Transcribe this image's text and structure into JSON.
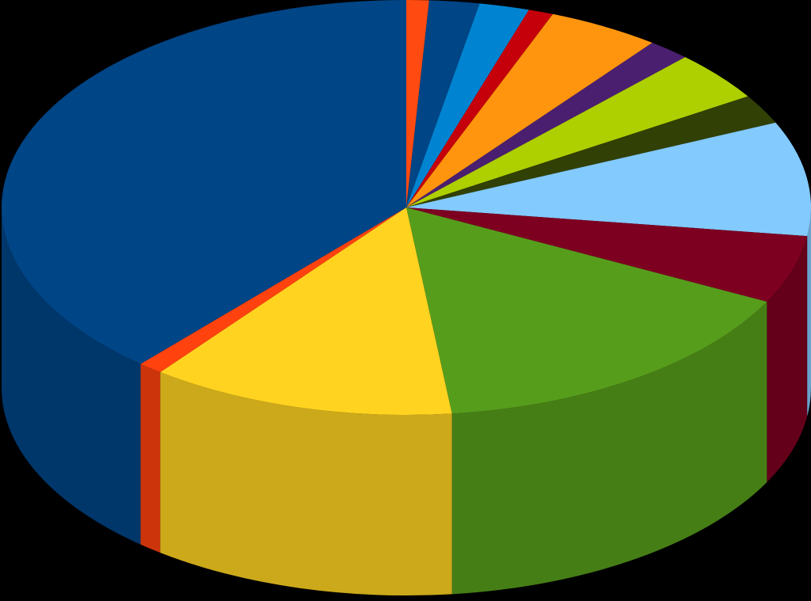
{
  "chart_data": {
    "type": "pie",
    "style": "3d",
    "title": "",
    "legend": "none",
    "start": "top",
    "direction": "clockwise",
    "slices": [
      {
        "value": 0.9,
        "color": "#FF4A12"
      },
      {
        "value": 2.0,
        "color": "#004586"
      },
      {
        "value": 2.0,
        "color": "#0084D1"
      },
      {
        "value": 1.0,
        "color": "#C5000B"
      },
      {
        "value": 4.5,
        "color": "#FF950E"
      },
      {
        "value": 1.7,
        "color": "#4B1F6F"
      },
      {
        "value": 3.9,
        "color": "#AECF00"
      },
      {
        "value": 2.3,
        "color": "#314004"
      },
      {
        "value": 8.9,
        "color": "#83CAFF"
      },
      {
        "value": 5.3,
        "color": "#7E0021"
      },
      {
        "value": 15.7,
        "color": "#579D1C"
      },
      {
        "value": 12.2,
        "color": "#FFD320"
      },
      {
        "value": 1.0,
        "color": "#FF420E"
      },
      {
        "value": 38.6,
        "color": "#004586"
      }
    ]
  }
}
